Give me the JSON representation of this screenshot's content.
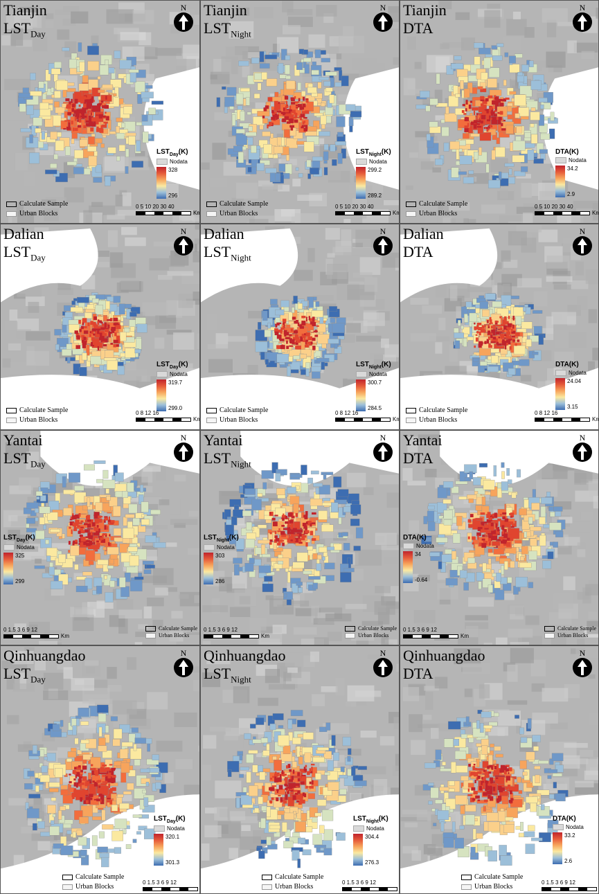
{
  "rows": [
    {
      "city": "Tianjin",
      "panels": [
        {
          "var_main": "LST",
          "var_sub": "Day",
          "legend_prefix": "LST",
          "legend_sub": "Day",
          "legend_suffix": "(K)",
          "max": "328",
          "min": "296"
        },
        {
          "var_main": "LST",
          "var_sub": "Night",
          "legend_prefix": "LST",
          "legend_sub": "Night",
          "legend_suffix": "(K)",
          "max": "299.2",
          "min": "289.2"
        },
        {
          "var_main": "DTA",
          "var_sub": "",
          "legend_prefix": "DTA(K)",
          "legend_sub": "",
          "legend_suffix": "",
          "max": "34.2",
          "min": "2.9"
        }
      ],
      "scale_labels": "0  5 10   20    30    40",
      "scale_unit": "Km"
    },
    {
      "city": "Dalian",
      "panels": [
        {
          "var_main": "LST",
          "var_sub": "Day",
          "legend_prefix": "LST",
          "legend_sub": "Day",
          "legend_suffix": "(K)",
          "max": "319.7",
          "min": "299.0"
        },
        {
          "var_main": "LST",
          "var_sub": "Night",
          "legend_prefix": "LST",
          "legend_sub": "Night",
          "legend_suffix": "(K)",
          "max": "300.7",
          "min": "284.5"
        },
        {
          "var_main": "DTA",
          "var_sub": "",
          "legend_prefix": "DTA(K)",
          "legend_sub": "",
          "legend_suffix": "",
          "max": "24.04",
          "min": "3.15"
        }
      ],
      "scale_labels": "0        8    12    16",
      "scale_unit": "Km"
    },
    {
      "city": "Yantai",
      "panels": [
        {
          "var_main": "LST",
          "var_sub": "Day",
          "legend_prefix": "LST",
          "legend_sub": "Day",
          "legend_suffix": "(K)",
          "max": "325",
          "min": "299"
        },
        {
          "var_main": "LST",
          "var_sub": "Night",
          "legend_prefix": "LST",
          "legend_sub": "Night",
          "legend_suffix": "(K)",
          "max": "303",
          "min": "286"
        },
        {
          "var_main": "DTA",
          "var_sub": "",
          "legend_prefix": "DTA(K)",
          "legend_sub": "",
          "legend_suffix": "",
          "max": "34",
          "min": "-0.64"
        }
      ],
      "scale_labels": "0 1.5 3    6     9    12",
      "scale_unit": "Km"
    },
    {
      "city": "Qinhuangdao",
      "panels": [
        {
          "var_main": "LST",
          "var_sub": "Day",
          "legend_prefix": "LST",
          "legend_sub": "Day",
          "legend_suffix": "(K)",
          "max": "320.1",
          "min": "301.3"
        },
        {
          "var_main": "LST",
          "var_sub": "Night",
          "legend_prefix": "LST",
          "legend_sub": "Night",
          "legend_suffix": "(K)",
          "max": "304.4",
          "min": "276.3"
        },
        {
          "var_main": "DTA",
          "var_sub": "",
          "legend_prefix": "DTA(K)",
          "legend_sub": "",
          "legend_suffix": "",
          "max": "33.2",
          "min": "2.6"
        }
      ],
      "scale_labels": "0 1.5 3    6     9    12",
      "scale_unit": "Km"
    }
  ],
  "common": {
    "nodata": "Nodata",
    "calculate_sample": "Calculate  Sample",
    "urban_blocks": "Urban Blocks",
    "north": "N"
  },
  "colors": {
    "hot": "#c0242c",
    "warm": "#f7a45c",
    "mid": "#fbe9a0",
    "cool": "#3d6db1",
    "background": "#b9b9b9",
    "sea": "#ffffff"
  }
}
